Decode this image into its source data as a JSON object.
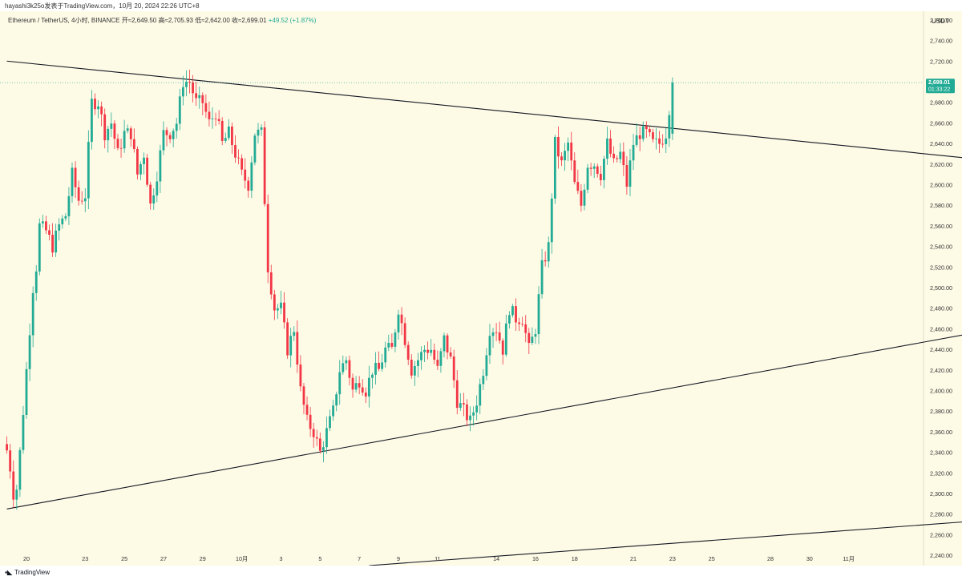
{
  "header": {
    "author_line": "hayashi3k25o发表于TradingView.com，10月 20, 2024 22:26 UTC+8"
  },
  "legend": {
    "symbol": "Ethereum / TetherUS, 4小时, BINANCE",
    "open": "开≈2,649.50",
    "high": "高≈2,705.93",
    "low": "低≈2,642.00",
    "close": "收≈2,699.01",
    "change": "+49.52 (+1.87%)"
  },
  "footer": {
    "logo_text": "TradingView"
  },
  "colors": {
    "background": "#fdfae6",
    "up": "#22ab94",
    "down": "#f23645",
    "line": "#131722",
    "price_label_bg": "#22ab94"
  },
  "chart_data": {
    "type": "candlestick",
    "currency_label": "USDT",
    "y_axis": {
      "min": 2230,
      "max": 2770,
      "ticks": [
        2240,
        2260,
        2280,
        2300,
        2320,
        2340,
        2360,
        2380,
        2400,
        2420,
        2440,
        2460,
        2480,
        2500,
        2520,
        2540,
        2560,
        2580,
        2600,
        2620,
        2640,
        2660,
        2680,
        2700,
        2720,
        2740,
        2760
      ],
      "tick_labels": [
        "2,240.00",
        "2,260.00",
        "2,280.00",
        "2,300.00",
        "2,320.00",
        "2,340.00",
        "2,360.00",
        "2,380.00",
        "2,400.00",
        "2,420.00",
        "2,440.00",
        "2,460.00",
        "2,480.00",
        "2,500.00",
        "2,520.00",
        "2,540.00",
        "2,560.00",
        "2,580.00",
        "2,600.00",
        "2,620.00",
        "2,640.00",
        "2,660.00",
        "2,680.00",
        "2,700.00",
        "2,720.00",
        "2,740.00",
        "2,760.00"
      ]
    },
    "last_price": {
      "value": 2699.01,
      "label": "2,699.01",
      "countdown": "01:33:22"
    },
    "x_axis": {
      "ticks": [
        {
          "bar": 6,
          "label": "20"
        },
        {
          "bar": 24,
          "label": "23"
        },
        {
          "bar": 36,
          "label": "25"
        },
        {
          "bar": 48,
          "label": "27"
        },
        {
          "bar": 60,
          "label": "29"
        },
        {
          "bar": 72,
          "label": "10月"
        },
        {
          "bar": 84,
          "label": "3"
        },
        {
          "bar": 96,
          "label": "5"
        },
        {
          "bar": 108,
          "label": "7"
        },
        {
          "bar": 120,
          "label": "9"
        },
        {
          "bar": 132,
          "label": "11"
        },
        {
          "bar": 150,
          "label": "14"
        },
        {
          "bar": 162,
          "label": "16"
        },
        {
          "bar": 174,
          "label": "18"
        },
        {
          "bar": 192,
          "label": "21"
        },
        {
          "bar": 204,
          "label": "23"
        },
        {
          "bar": 216,
          "label": "25"
        },
        {
          "bar": 234,
          "label": "28"
        },
        {
          "bar": 246,
          "label": "30"
        },
        {
          "bar": 258,
          "label": "11月"
        }
      ]
    },
    "bar_spacing_note": "bars at 4-hour interval, index 0 = first visible candle",
    "candles_anchor": [
      [
        0,
        2342
      ],
      [
        1,
        2325
      ],
      [
        2,
        2300
      ],
      [
        3,
        2305
      ],
      [
        4,
        2340
      ],
      [
        5,
        2380
      ],
      [
        6,
        2420
      ],
      [
        7,
        2460
      ],
      [
        8,
        2500
      ],
      [
        9,
        2520
      ],
      [
        10,
        2560
      ],
      [
        12,
        2555
      ],
      [
        14,
        2540
      ],
      [
        16,
        2560
      ],
      [
        18,
        2570
      ],
      [
        20,
        2610
      ],
      [
        22,
        2585
      ],
      [
        24,
        2590
      ],
      [
        26,
        2680
      ],
      [
        28,
        2680
      ],
      [
        30,
        2650
      ],
      [
        32,
        2660
      ],
      [
        34,
        2630
      ],
      [
        36,
        2650
      ],
      [
        38,
        2650
      ],
      [
        40,
        2610
      ],
      [
        42,
        2630
      ],
      [
        44,
        2580
      ],
      [
        46,
        2610
      ],
      [
        48,
        2650
      ],
      [
        50,
        2650
      ],
      [
        52,
        2660
      ],
      [
        54,
        2700
      ],
      [
        56,
        2700
      ],
      [
        58,
        2680
      ],
      [
        60,
        2680
      ],
      [
        62,
        2660
      ],
      [
        64,
        2670
      ],
      [
        66,
        2640
      ],
      [
        68,
        2650
      ],
      [
        70,
        2630
      ],
      [
        72,
        2610
      ],
      [
        74,
        2600
      ],
      [
        76,
        2650
      ],
      [
        78,
        2650
      ],
      [
        80,
        2520
      ],
      [
        82,
        2480
      ],
      [
        84,
        2480
      ],
      [
        86,
        2440
      ],
      [
        88,
        2460
      ],
      [
        90,
        2400
      ],
      [
        92,
        2370
      ],
      [
        94,
        2360
      ],
      [
        96,
        2340
      ],
      [
        98,
        2360
      ],
      [
        100,
        2380
      ],
      [
        102,
        2420
      ],
      [
        104,
        2430
      ],
      [
        106,
        2400
      ],
      [
        108,
        2410
      ],
      [
        110,
        2400
      ],
      [
        112,
        2420
      ],
      [
        114,
        2420
      ],
      [
        116,
        2440
      ],
      [
        118,
        2440
      ],
      [
        120,
        2480
      ],
      [
        122,
        2450
      ],
      [
        124,
        2420
      ],
      [
        126,
        2430
      ],
      [
        128,
        2440
      ],
      [
        130,
        2440
      ],
      [
        132,
        2420
      ],
      [
        134,
        2450
      ],
      [
        136,
        2430
      ],
      [
        138,
        2390
      ],
      [
        140,
        2380
      ],
      [
        142,
        2370
      ],
      [
        144,
        2390
      ],
      [
        146,
        2420
      ],
      [
        148,
        2460
      ],
      [
        150,
        2460
      ],
      [
        152,
        2440
      ],
      [
        154,
        2480
      ],
      [
        156,
        2470
      ],
      [
        158,
        2470
      ],
      [
        160,
        2440
      ],
      [
        162,
        2460
      ],
      [
        164,
        2520
      ],
      [
        166,
        2540
      ],
      [
        168,
        2640
      ],
      [
        170,
        2620
      ],
      [
        172,
        2640
      ],
      [
        174,
        2600
      ],
      [
        176,
        2580
      ],
      [
        178,
        2620
      ],
      [
        180,
        2620
      ],
      [
        182,
        2610
      ],
      [
        184,
        2640
      ],
      [
        186,
        2620
      ],
      [
        188,
        2630
      ],
      [
        190,
        2600
      ],
      [
        192,
        2640
      ],
      [
        194,
        2650
      ],
      [
        196,
        2650
      ],
      [
        198,
        2640
      ],
      [
        200,
        2640
      ],
      [
        202,
        2650
      ],
      [
        204,
        2699
      ]
    ],
    "trendlines": [
      {
        "name": "upper-resistance",
        "from": {
          "bar": 0,
          "price": 2720
        },
        "to": {
          "bar": 300,
          "price": 2624
        }
      },
      {
        "name": "lower-support",
        "from": {
          "bar": 0,
          "price": 2285
        },
        "to": {
          "bar": 300,
          "price": 2458
        }
      },
      {
        "name": "lower-channel",
        "from": {
          "bar": 111,
          "price": 2230
        },
        "to": {
          "bar": 300,
          "price": 2274
        }
      }
    ]
  }
}
